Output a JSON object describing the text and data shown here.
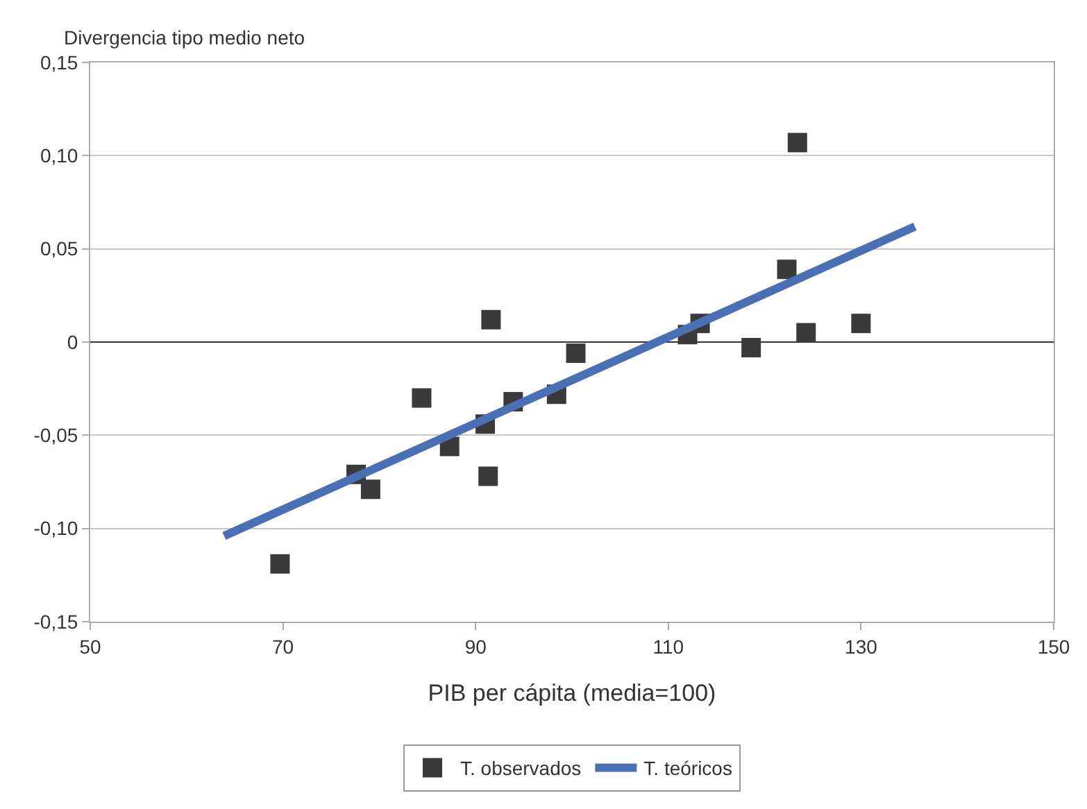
{
  "chart_data": {
    "type": "scatter",
    "xlabel": "PIB per cápita (media=100)",
    "ylabel": "Divergencia tipo medio neto",
    "xlim": [
      50,
      150
    ],
    "xticks": [
      50,
      70,
      90,
      110,
      130,
      150
    ],
    "ylim": [
      -0.15,
      0.15
    ],
    "yticks": [
      {
        "value": -0.15,
        "label": "-0,15"
      },
      {
        "value": -0.1,
        "label": "-0,10"
      },
      {
        "value": -0.05,
        "label": "-0,05"
      },
      0,
      {
        "value": 0.05,
        "label": "0,05"
      },
      {
        "value": 0.1,
        "label": "0,10"
      },
      {
        "value": 0.15,
        "label": "0,15"
      }
    ],
    "grid": "y",
    "legend": "bottom",
    "marker": "square",
    "ref_lines": [
      {
        "axis": "y",
        "value": 0,
        "color": "#333333"
      }
    ],
    "series": [
      {
        "name": "T. observados",
        "color": "#3a3a3a",
        "x": [
          69.7,
          77.6,
          79.1,
          84.4,
          87.3,
          91.0,
          91.3,
          91.6,
          93.9,
          98.4,
          100.4,
          112.0,
          113.3,
          118.6,
          122.3,
          123.4,
          124.3,
          130.0
        ],
        "values": [
          -0.119,
          -0.071,
          -0.079,
          -0.03,
          -0.056,
          -0.044,
          -0.072,
          0.012,
          -0.032,
          -0.028,
          -0.006,
          0.004,
          0.01,
          -0.003,
          0.039,
          0.107,
          0.005,
          0.01
        ]
      },
      {
        "name": "T. teóricos",
        "type": "line",
        "marker": "none",
        "color": "#4a6fb5",
        "x": [
          63.9,
          135.6
        ],
        "values": [
          -0.104,
          0.062
        ]
      }
    ]
  }
}
